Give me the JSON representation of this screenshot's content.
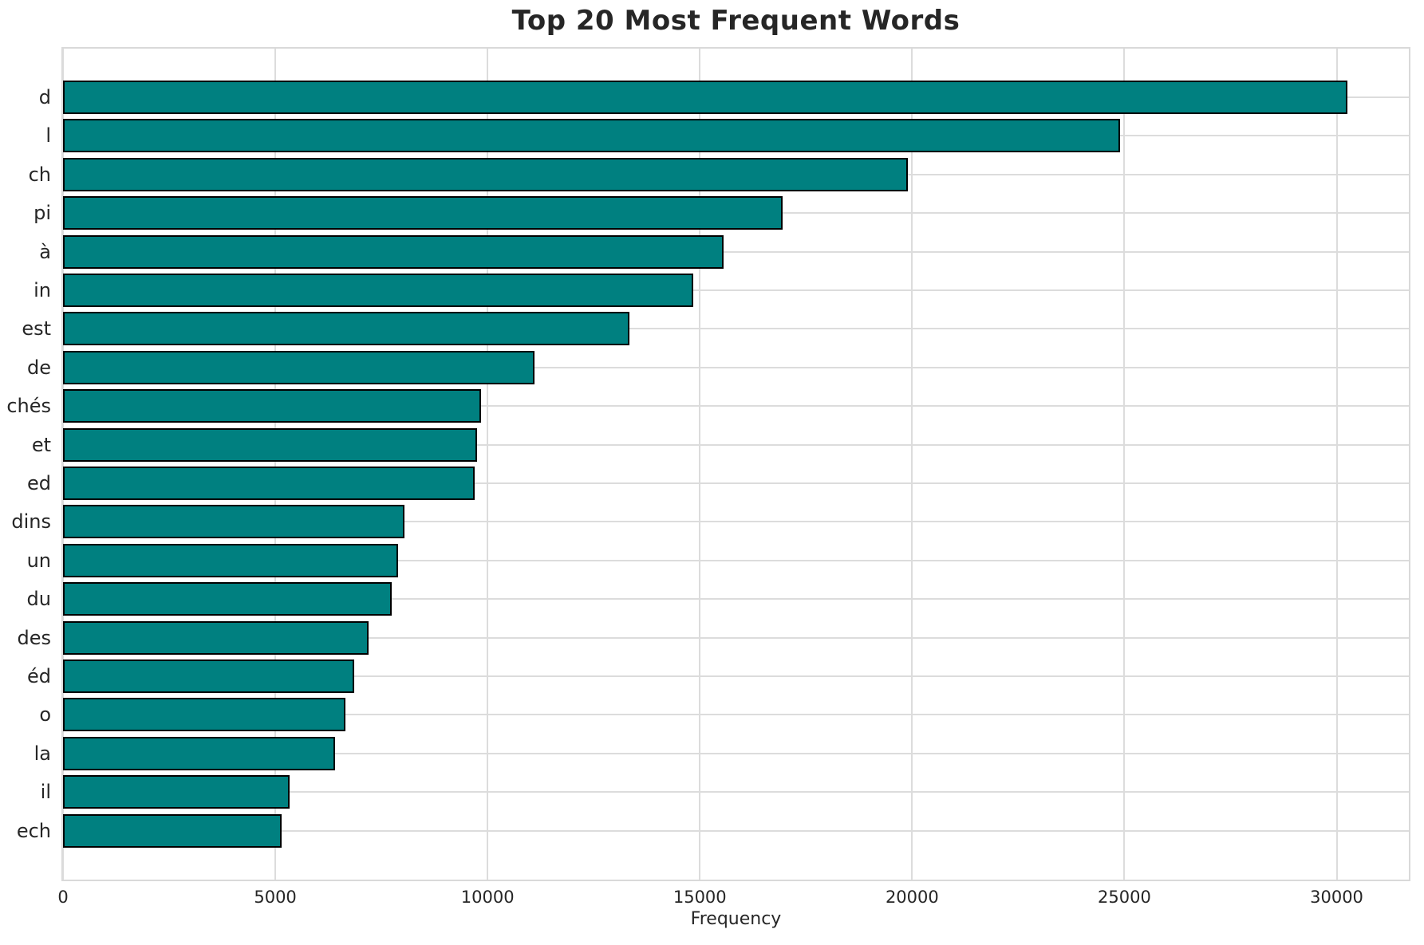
{
  "chart_data": {
    "type": "bar",
    "orientation": "horizontal",
    "title": "Top 20 Most Frequent Words",
    "xlabel": "Frequency",
    "ylabel": "",
    "categories": [
      "d",
      "l",
      "ch",
      "pi",
      "à",
      "in",
      "est",
      "de",
      "chés",
      "et",
      "ed",
      "dins",
      "un",
      "du",
      "des",
      "éd",
      "o",
      "la",
      "il",
      "ech"
    ],
    "values": [
      30250,
      24900,
      19900,
      16950,
      15550,
      14850,
      13350,
      11100,
      9850,
      9750,
      9700,
      8050,
      7900,
      7750,
      7200,
      6850,
      6650,
      6400,
      5330,
      5150
    ],
    "xticks": [
      0,
      5000,
      10000,
      15000,
      20000,
      25000,
      30000
    ],
    "xlim": [
      0,
      31700
    ],
    "grid": true,
    "legend_position": "none",
    "bar_color": "#008080",
    "bar_edge_color": "#000000",
    "grid_color": "#dcdcdc",
    "text_color": "#262626",
    "background_color": "#ffffff"
  }
}
